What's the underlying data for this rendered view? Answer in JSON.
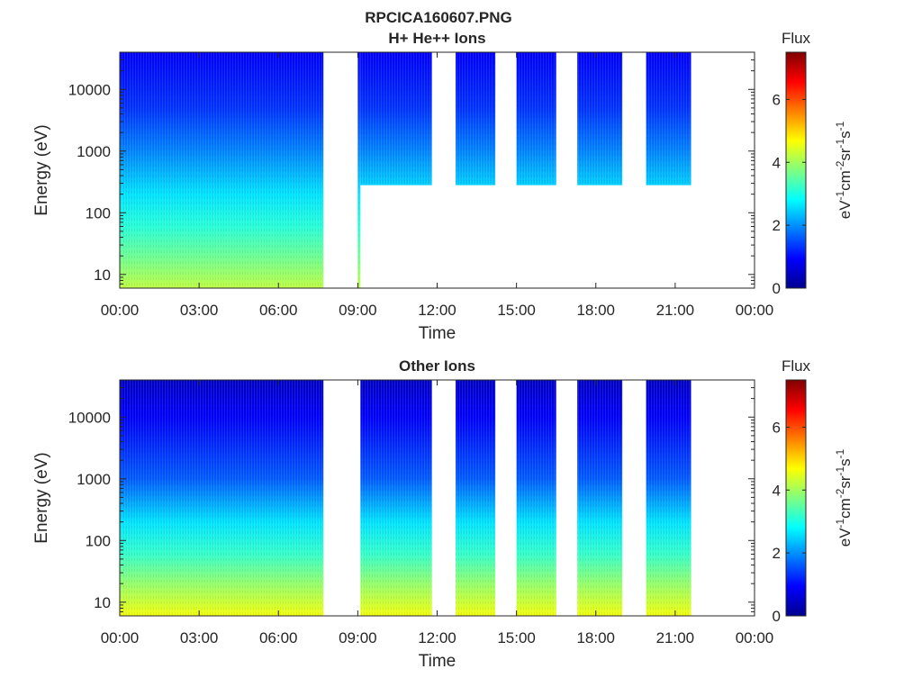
{
  "figure": {
    "title": "RPCICA160607.PNG"
  },
  "chart_data": [
    {
      "type": "heatmap",
      "title": "H+ He++ Ions",
      "xlabel": "Time",
      "ylabel": "Energy (eV)",
      "x_ticks": [
        "00:00",
        "03:00",
        "06:00",
        "09:00",
        "12:00",
        "15:00",
        "18:00",
        "21:00",
        "00:00"
      ],
      "x_range_hours": [
        0,
        24
      ],
      "y_scale": "log",
      "y_ticks": [
        "10",
        "100",
        "1000",
        "10000"
      ],
      "y_range_eV": [
        6,
        40000
      ],
      "colorbar": {
        "label": "Flux",
        "unit": "eV⁻¹cm⁻²sr⁻¹s⁻¹",
        "ticks": [
          "0",
          "2",
          "4",
          "6"
        ],
        "range": [
          0,
          7.5
        ],
        "colormap": "jet"
      },
      "data_blocks": [
        {
          "start_hour": 0.0,
          "end_hour": 7.7,
          "min_energy_eV": 6,
          "max_energy_eV": 40000
        },
        {
          "start_hour": 9.0,
          "end_hour": 9.1,
          "min_energy_eV": 6,
          "max_energy_eV": 40000
        },
        {
          "start_hour": 9.1,
          "end_hour": 11.8,
          "min_energy_eV": 280,
          "max_energy_eV": 40000
        },
        {
          "start_hour": 12.7,
          "end_hour": 14.2,
          "min_energy_eV": 280,
          "max_energy_eV": 40000
        },
        {
          "start_hour": 15.0,
          "end_hour": 16.5,
          "min_energy_eV": 280,
          "max_energy_eV": 40000
        },
        {
          "start_hour": 17.3,
          "end_hour": 19.0,
          "min_energy_eV": 280,
          "max_energy_eV": 40000
        },
        {
          "start_hour": 19.9,
          "end_hour": 21.6,
          "min_energy_eV": 280,
          "max_energy_eV": 40000
        }
      ],
      "flux_profile": [
        {
          "energy_eV": 6,
          "flux": 4.2
        },
        {
          "energy_eV": 20,
          "flux": 3.6
        },
        {
          "energy_eV": 60,
          "flux": 3.1
        },
        {
          "energy_eV": 200,
          "flux": 2.6
        },
        {
          "energy_eV": 1000,
          "flux": 1.9
        },
        {
          "energy_eV": 5000,
          "flux": 1.3
        },
        {
          "energy_eV": 40000,
          "flux": 0.9
        }
      ]
    },
    {
      "type": "heatmap",
      "title": "Other Ions",
      "xlabel": "Time",
      "ylabel": "Energy (eV)",
      "x_ticks": [
        "00:00",
        "03:00",
        "06:00",
        "09:00",
        "12:00",
        "15:00",
        "18:00",
        "21:00",
        "00:00"
      ],
      "x_range_hours": [
        0,
        24
      ],
      "y_scale": "log",
      "y_ticks": [
        "10",
        "100",
        "1000",
        "10000"
      ],
      "y_range_eV": [
        6,
        40000
      ],
      "colorbar": {
        "label": "Flux",
        "unit": "eV⁻¹cm⁻²sr⁻¹s⁻¹",
        "ticks": [
          "0",
          "2",
          "4",
          "6"
        ],
        "range": [
          0,
          7.5
        ],
        "colormap": "jet"
      },
      "data_blocks": [
        {
          "start_hour": 0.0,
          "end_hour": 7.7,
          "min_energy_eV": 6,
          "max_energy_eV": 40000
        },
        {
          "start_hour": 9.1,
          "end_hour": 11.8,
          "min_energy_eV": 6,
          "max_energy_eV": 40000
        },
        {
          "start_hour": 12.7,
          "end_hour": 14.2,
          "min_energy_eV": 6,
          "max_energy_eV": 40000
        },
        {
          "start_hour": 15.0,
          "end_hour": 16.5,
          "min_energy_eV": 6,
          "max_energy_eV": 40000
        },
        {
          "start_hour": 17.3,
          "end_hour": 19.0,
          "min_energy_eV": 6,
          "max_energy_eV": 40000
        },
        {
          "start_hour": 19.9,
          "end_hour": 21.6,
          "min_energy_eV": 6,
          "max_energy_eV": 40000
        }
      ],
      "flux_profile": [
        {
          "energy_eV": 6,
          "flux": 4.6
        },
        {
          "energy_eV": 20,
          "flux": 3.9
        },
        {
          "energy_eV": 60,
          "flux": 3.2
        },
        {
          "energy_eV": 200,
          "flux": 2.6
        },
        {
          "energy_eV": 1000,
          "flux": 1.6
        },
        {
          "energy_eV": 10000,
          "flux": 0.9
        },
        {
          "energy_eV": 40000,
          "flux": 0.5
        }
      ]
    }
  ]
}
